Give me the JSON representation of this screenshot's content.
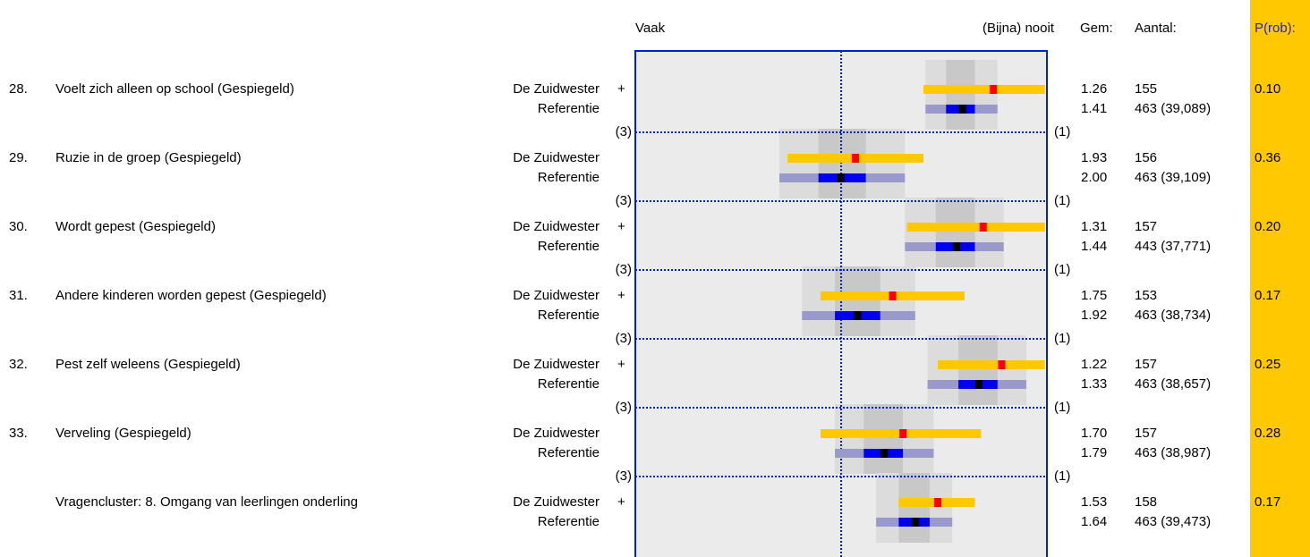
{
  "chart_data": {
    "type": "range",
    "header": {
      "left": "Vaak",
      "right": "(Bijna) nooit",
      "mean": "Gem:",
      "count": "Aantal:",
      "p": "P(rob):"
    },
    "xlim": [
      3,
      1
    ],
    "midline": 2,
    "left_label": "(3)",
    "right_label": "(1)",
    "colors": {
      "school_bar": "#ffc800",
      "school_mean": "#ff0000",
      "ref_outer": "#9999cc",
      "ref_inner": "#0000ee",
      "ref_mean": "#000000",
      "gray_outer": "#dcdcdc",
      "gray_inner": "#c8c8c8",
      "plot_bg": "#ebebeb",
      "frame": "#0022cc",
      "p_bg": "#ffc800",
      "p_head": "#2222cc"
    },
    "rows": [
      {
        "number": "28.",
        "question": "Voelt zich alleen op school (Gespiegeld)",
        "school": "De Zuidwester",
        "flag": "+",
        "reference": "Referentie",
        "school_mean": {
          "value": 1.26,
          "label": "1.26"
        },
        "school_range": [
          1.6,
          1.01
        ],
        "school_count": "155",
        "ref_mean": {
          "value": 1.41,
          "label": "1.41"
        },
        "ref_inner": [
          1.49,
          1.35
        ],
        "ref_outer": [
          1.59,
          1.24
        ],
        "ref_count": "463 (39,089)",
        "p": "0.10"
      },
      {
        "number": "29.",
        "question": "Ruzie in de groep (Gespiegeld)",
        "school": "De Zuidwester",
        "reference": "Referentie",
        "school_mean": {
          "value": 1.93,
          "label": "1.93"
        },
        "school_range": [
          2.26,
          1.6
        ],
        "school_count": "156",
        "ref_mean": {
          "value": 2.0,
          "label": "2.00"
        },
        "ref_inner": [
          2.11,
          1.88
        ],
        "ref_outer": [
          2.3,
          1.69
        ],
        "ref_count": "463 (39,109)",
        "p": "0.36"
      },
      {
        "number": "30.",
        "question": "Wordt gepest (Gespiegeld)",
        "school": "De Zuidwester",
        "flag": "+",
        "reference": "Referentie",
        "school_mean": {
          "value": 1.31,
          "label": "1.31"
        },
        "school_range": [
          1.68,
          1.01
        ],
        "school_count": "157",
        "ref_mean": {
          "value": 1.44,
          "label": "1.44"
        },
        "ref_inner": [
          1.54,
          1.35
        ],
        "ref_outer": [
          1.69,
          1.21
        ],
        "ref_count": "443 (37,771)",
        "p": "0.20"
      },
      {
        "number": "31.",
        "question": "Andere kinderen worden gepest (Gespiegeld)",
        "school": "De Zuidwester",
        "flag": "+",
        "reference": "Referentie",
        "school_mean": {
          "value": 1.75,
          "label": "1.75"
        },
        "school_range": [
          2.1,
          1.4
        ],
        "school_count": "153",
        "ref_mean": {
          "value": 1.92,
          "label": "1.92"
        },
        "ref_inner": [
          2.03,
          1.81
        ],
        "ref_outer": [
          2.19,
          1.64
        ],
        "ref_count": "463 (38,734)",
        "p": "0.17"
      },
      {
        "number": "32.",
        "question": "Pest zelf weleens (Gespiegeld)",
        "school": "De Zuidwester",
        "flag": "+",
        "reference": "Referentie",
        "school_mean": {
          "value": 1.22,
          "label": "1.22"
        },
        "school_range": [
          1.53,
          1.01
        ],
        "school_count": "157",
        "ref_mean": {
          "value": 1.33,
          "label": "1.33"
        },
        "ref_inner": [
          1.43,
          1.24
        ],
        "ref_outer": [
          1.58,
          1.1
        ],
        "ref_count": "463 (38,657)",
        "p": "0.25"
      },
      {
        "number": "33.",
        "question": "Verveling (Gespiegeld)",
        "school": "De Zuidwester",
        "reference": "Referentie",
        "school_mean": {
          "value": 1.7,
          "label": "1.70"
        },
        "school_range": [
          2.1,
          1.32
        ],
        "school_count": "157",
        "ref_mean": {
          "value": 1.79,
          "label": "1.79"
        },
        "ref_inner": [
          1.89,
          1.7
        ],
        "ref_outer": [
          2.03,
          1.55
        ],
        "ref_count": "463 (38,987)",
        "p": "0.28"
      },
      {
        "question": "Vragencluster: 8. Omgang van leerlingen onderling",
        "school": "De Zuidwester",
        "flag": "+",
        "reference": "Referentie",
        "school_mean": {
          "value": 1.53,
          "label": "1.53"
        },
        "school_range": [
          1.72,
          1.35
        ],
        "school_count": "158",
        "ref_mean": {
          "value": 1.64,
          "label": "1.64"
        },
        "ref_inner": [
          1.72,
          1.57
        ],
        "ref_outer": [
          1.83,
          1.46
        ],
        "ref_count": "463 (39,473)",
        "p": "0.17"
      }
    ]
  }
}
